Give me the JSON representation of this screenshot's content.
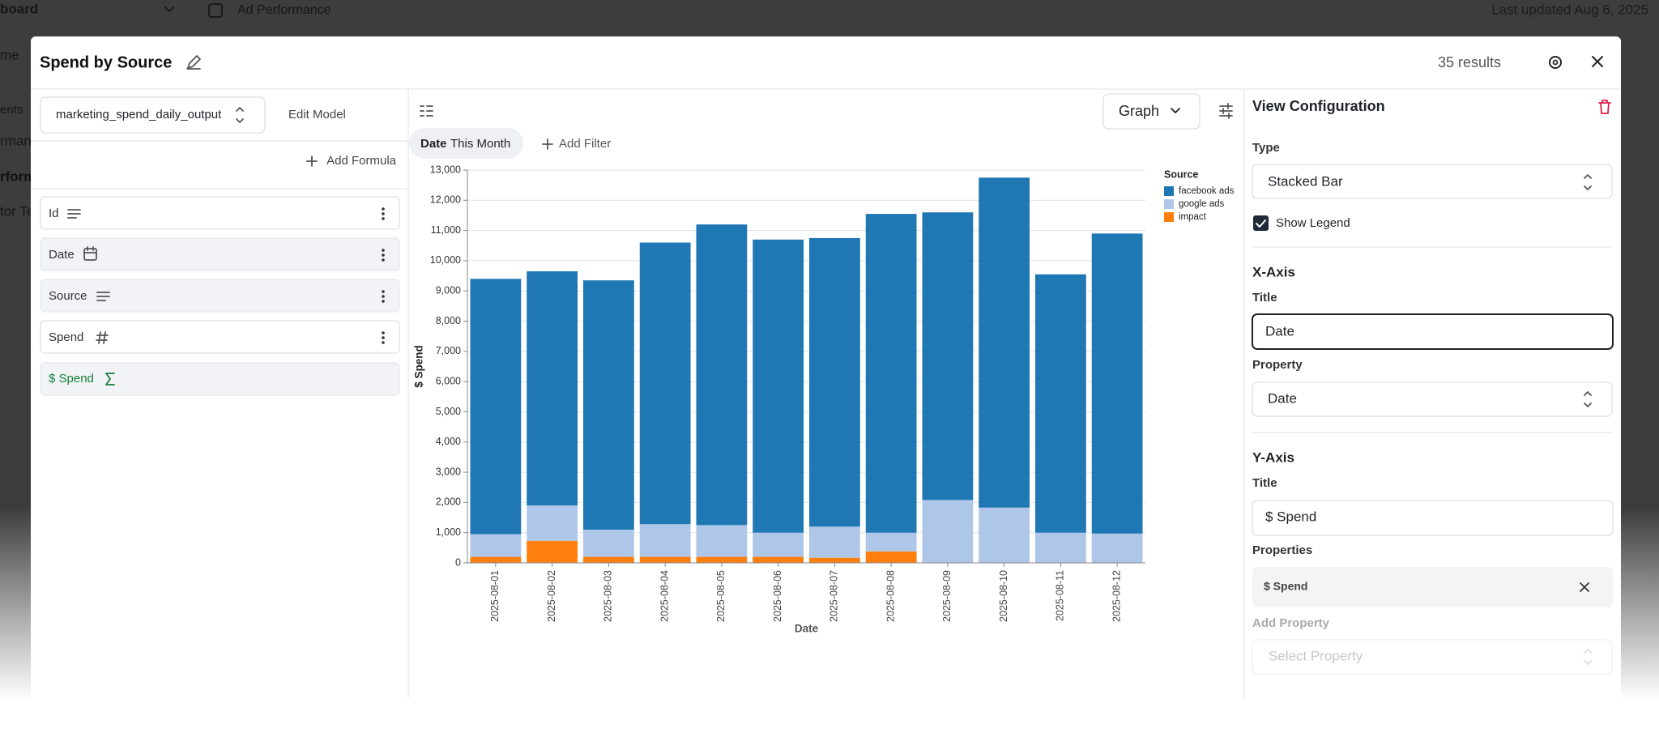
{
  "background": {
    "breadcrumb": "board",
    "page_title": "Ad Performance",
    "last_updated": "Last updated Aug 6, 2025",
    "sidebar": [
      "me",
      "ents",
      "rmanc",
      "rform",
      "tor Te"
    ]
  },
  "modal": {
    "title": "Spend by Source",
    "results": "35 results"
  },
  "model_panel": {
    "model": "marketing_spend_daily_output",
    "edit_model": "Edit Model",
    "add_formula": "Add Formula",
    "fields": [
      "Id",
      "Date",
      "Source",
      "Spend",
      "$ Spend"
    ]
  },
  "graph_panel": {
    "view": "Graph",
    "filter": {
      "field": "Date",
      "value": "This Month"
    },
    "add_filter": "Add Filter"
  },
  "chart_data": {
    "type": "bar",
    "stacked": true,
    "categories": [
      "2025-08-01",
      "2025-08-02",
      "2025-08-03",
      "2025-08-04",
      "2025-08-05",
      "2025-08-06",
      "2025-08-07",
      "2025-08-08",
      "2025-08-09",
      "2025-08-10",
      "2025-08-11",
      "2025-08-12"
    ],
    "series": [
      {
        "name": "facebook ads",
        "color": "#1f77b4",
        "values": [
          8450,
          7750,
          8250,
          9320,
          9950,
          9700,
          9550,
          10550,
          9520,
          10920,
          8550,
          9930
        ]
      },
      {
        "name": "google ads",
        "color": "#aec7e8",
        "values": [
          750,
          1170,
          900,
          1080,
          1050,
          800,
          1030,
          620,
          2080,
          1830,
          1000,
          970
        ]
      },
      {
        "name": "impact",
        "color": "#ff7f0e",
        "values": [
          200,
          730,
          200,
          200,
          200,
          200,
          170,
          380,
          0,
          0,
          0,
          0
        ]
      }
    ],
    "x_label": "Date",
    "y_label": "$ Spend",
    "legend_title": "Source",
    "legend": "right",
    "ylim": [
      0,
      13000
    ],
    "yticks": [
      0,
      {
        "value": 1000,
        "label": "1,000"
      },
      {
        "value": 2000,
        "label": "2,000"
      },
      {
        "value": 3000,
        "label": "3,000"
      },
      {
        "value": 4000,
        "label": "4,000"
      },
      {
        "value": 5000,
        "label": "5,000"
      },
      {
        "value": 6000,
        "label": "6,000"
      },
      {
        "value": 7000,
        "label": "7,000"
      },
      {
        "value": 8000,
        "label": "8,000"
      },
      {
        "value": 9000,
        "label": "9,000"
      },
      {
        "value": 10000,
        "label": "10,000"
      },
      {
        "value": 11000,
        "label": "11,000"
      },
      {
        "value": 12000,
        "label": "12,000"
      },
      {
        "value": 13000,
        "label": "13,000"
      }
    ],
    "grid": true
  },
  "config_panel": {
    "title": "View Configuration",
    "type_label": "Type",
    "type": "Stacked Bar",
    "show_legend": "Show Legend",
    "x_axis": {
      "heading": "X-Axis",
      "title_label": "Title",
      "title": "Date",
      "property_label": "Property",
      "property": "Date"
    },
    "y_axis": {
      "heading": "Y-Axis",
      "title_label": "Title",
      "title": "$ Spend",
      "properties_label": "Properties",
      "properties": [
        "$ Spend"
      ],
      "add_property_label": "Add Property",
      "add_property_placeholder": "Select Property"
    }
  }
}
